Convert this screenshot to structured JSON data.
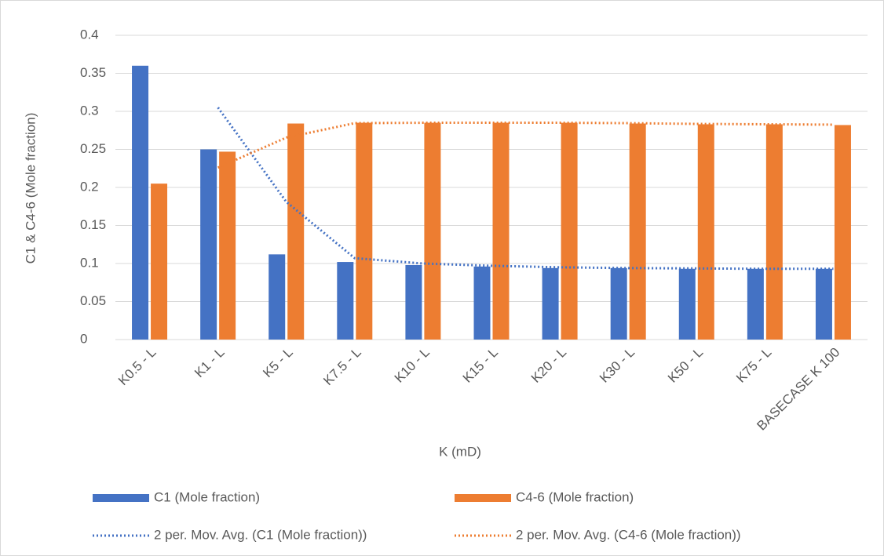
{
  "chart_data": {
    "type": "bar",
    "x_label": "K (mD)",
    "y_label": "C1 & C4-6 (Mole fraction)",
    "categories": [
      "K0.5 - L",
      "K1 - L",
      "K5 - L",
      "K7.5 - L",
      "K10 - L",
      "K15 - L",
      "K20 - L",
      "K30 - L",
      "K50 - L",
      "K75 - L",
      "BASECASE K 100"
    ],
    "series": [
      {
        "name": "C1 (Mole fraction)",
        "kind": "bar",
        "color": "#4472c4",
        "values": [
          0.36,
          0.25,
          0.112,
          0.102,
          0.098,
          0.096,
          0.094,
          0.094,
          0.093,
          0.093,
          0.093
        ]
      },
      {
        "name": "C4-6 (Mole fraction)",
        "kind": "bar",
        "color": "#ed7d31",
        "values": [
          0.205,
          0.247,
          0.284,
          0.285,
          0.285,
          0.285,
          0.285,
          0.284,
          0.283,
          0.283,
          0.282
        ]
      },
      {
        "name": "2 per. Mov. Avg. (C1 (Mole fraction))",
        "kind": "dotted-line",
        "color": "#4472c4",
        "values": [
          null,
          0.305,
          0.181,
          0.107,
          0.1,
          0.097,
          0.095,
          0.094,
          0.0935,
          0.093,
          0.093
        ]
      },
      {
        "name": "2 per. Mov. Avg. (C4-6 (Mole fraction))",
        "kind": "dotted-line",
        "color": "#ed7d31",
        "values": [
          null,
          0.226,
          0.2655,
          0.2845,
          0.285,
          0.285,
          0.285,
          0.2845,
          0.2835,
          0.283,
          0.2825
        ]
      }
    ],
    "ylim": [
      0,
      0.4
    ],
    "yticks": [
      0,
      0.05,
      0.1,
      0.15,
      0.2,
      0.25,
      0.3,
      0.35,
      0.4
    ],
    "grid": true,
    "legend": "bottom"
  }
}
